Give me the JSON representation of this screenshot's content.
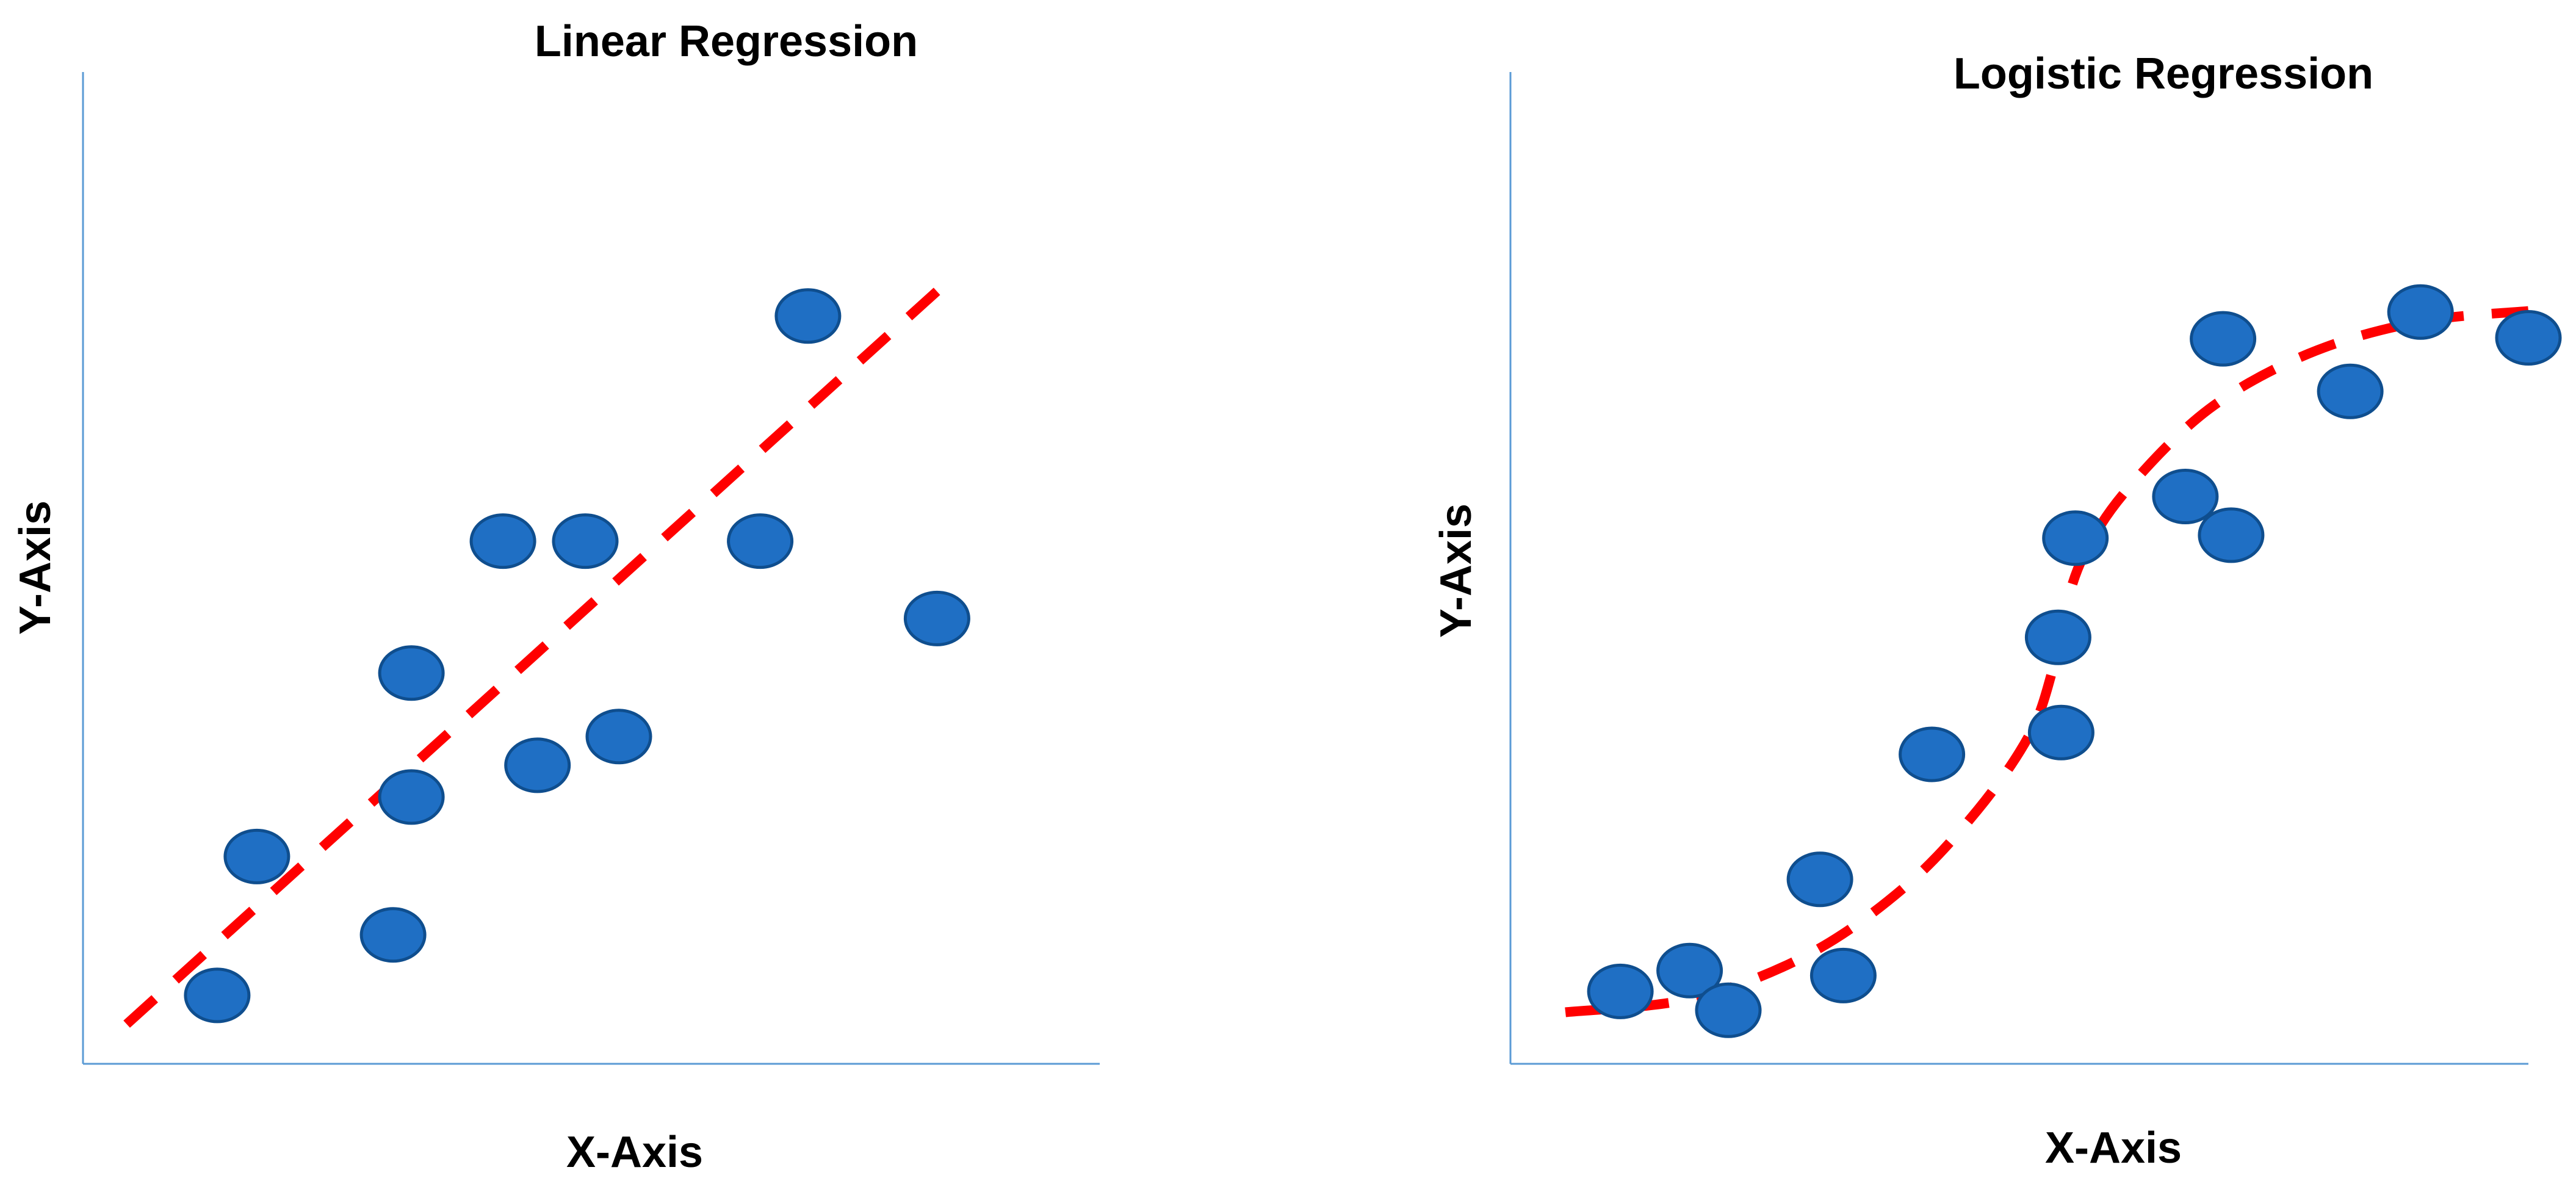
{
  "colors": {
    "point_fill": "#1f6fc4",
    "point_stroke": "#0f4e8e",
    "fit_line": "#ff0000",
    "axis_line": "#5b9bd5"
  },
  "chart_data": [
    {
      "type": "scatter",
      "title": "Linear Regression",
      "xlabel": "X-Axis",
      "ylabel": "Y-Axis",
      "xlim": [
        0,
        100
      ],
      "ylim": [
        0,
        100
      ],
      "grid": false,
      "axis_ticks": false,
      "points": [
        {
          "x": 13.2,
          "y": 6.9
        },
        {
          "x": 17.1,
          "y": 20.9
        },
        {
          "x": 30.5,
          "y": 13.0
        },
        {
          "x": 32.3,
          "y": 26.9
        },
        {
          "x": 32.3,
          "y": 39.4
        },
        {
          "x": 41.3,
          "y": 52.7
        },
        {
          "x": 44.7,
          "y": 30.1
        },
        {
          "x": 49.4,
          "y": 52.7
        },
        {
          "x": 52.7,
          "y": 33.0
        },
        {
          "x": 66.6,
          "y": 52.7
        },
        {
          "x": 71.3,
          "y": 75.4
        },
        {
          "x": 84.0,
          "y": 44.9
        }
      ],
      "fit": {
        "kind": "linear",
        "style": "dashed",
        "points": [
          {
            "x": 4.3,
            "y": 4.0
          },
          {
            "x": 84.0,
            "y": 77.9
          }
        ]
      }
    },
    {
      "type": "scatter",
      "title": "Logistic Regression",
      "xlabel": "X-Axis",
      "ylabel": "Y-Axis",
      "xlim": [
        0,
        100
      ],
      "ylim": [
        0,
        100
      ],
      "grid": false,
      "axis_ticks": false,
      "points": [
        {
          "x": 10.8,
          "y": 7.3
        },
        {
          "x": 17.6,
          "y": 9.4
        },
        {
          "x": 21.4,
          "y": 5.4
        },
        {
          "x": 32.7,
          "y": 8.9
        },
        {
          "x": 30.4,
          "y": 18.6
        },
        {
          "x": 41.4,
          "y": 31.2
        },
        {
          "x": 54.1,
          "y": 33.4
        },
        {
          "x": 53.8,
          "y": 43.0
        },
        {
          "x": 55.5,
          "y": 53.0
        },
        {
          "x": 66.3,
          "y": 57.2
        },
        {
          "x": 70.0,
          "y": 73.1
        },
        {
          "x": 70.8,
          "y": 53.3
        },
        {
          "x": 82.5,
          "y": 67.8
        },
        {
          "x": 89.4,
          "y": 75.8
        },
        {
          "x": 100.0,
          "y": 73.2
        }
      ],
      "fit": {
        "kind": "logistic",
        "style": "dashed",
        "points": [
          {
            "x": 5.4,
            "y": 5.2
          },
          {
            "x": 17.9,
            "y": 6.6
          },
          {
            "x": 29.2,
            "y": 11.0
          },
          {
            "x": 38.7,
            "y": 17.8
          },
          {
            "x": 45.9,
            "y": 25.6
          },
          {
            "x": 51.0,
            "y": 33.2
          },
          {
            "x": 53.2,
            "y": 39.5
          },
          {
            "x": 54.3,
            "y": 45.0
          },
          {
            "x": 56.3,
            "y": 51.2
          },
          {
            "x": 60.5,
            "y": 57.8
          },
          {
            "x": 68.6,
            "y": 66.0
          },
          {
            "x": 78.4,
            "y": 71.6
          },
          {
            "x": 89.2,
            "y": 74.8
          },
          {
            "x": 100.0,
            "y": 75.9
          }
        ]
      }
    }
  ]
}
